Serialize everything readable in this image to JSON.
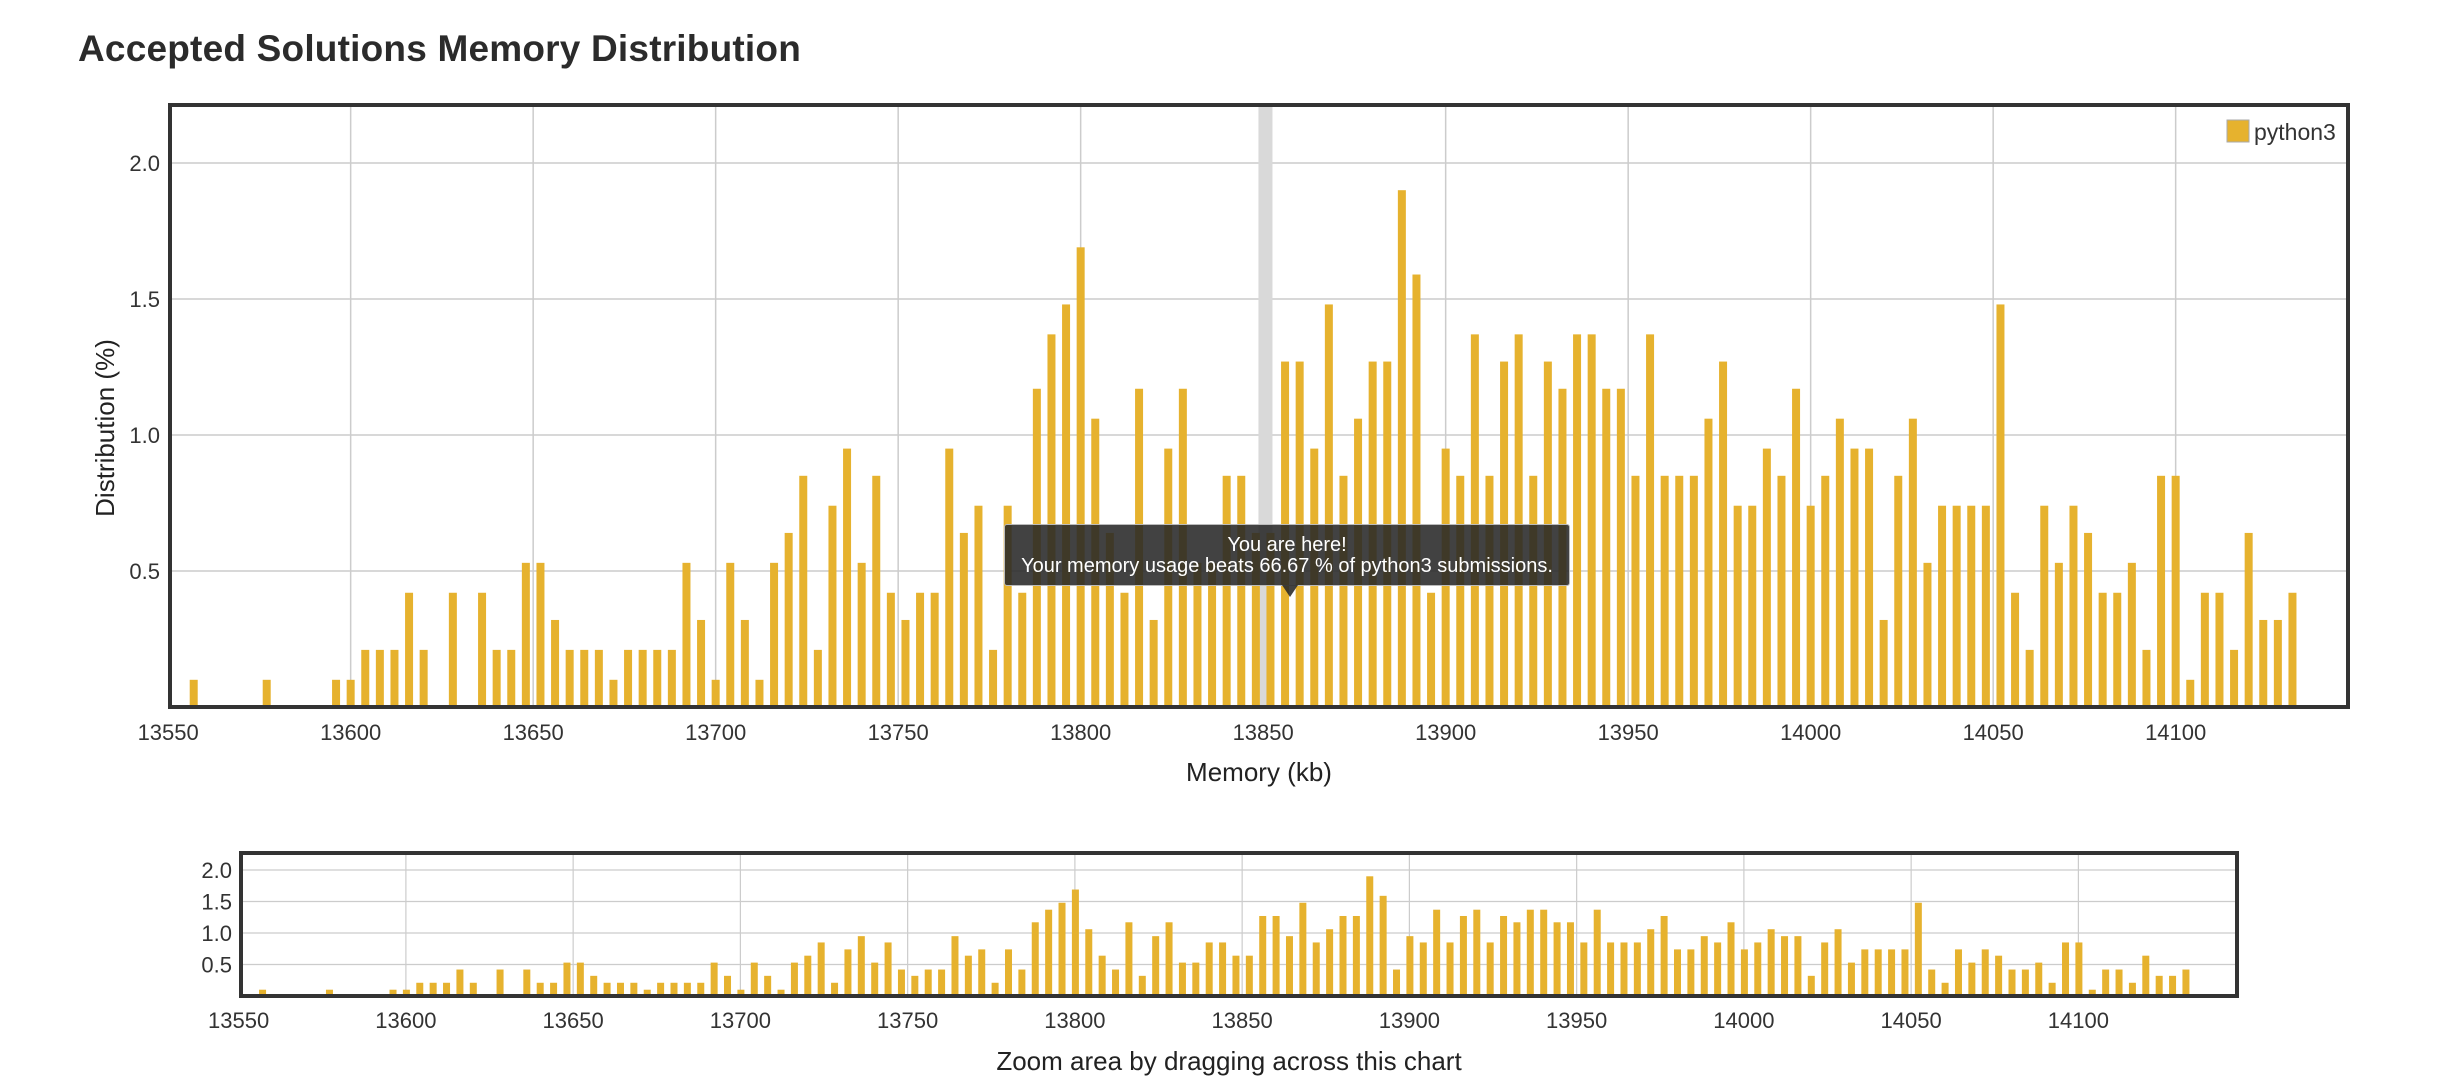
{
  "title": "Accepted Solutions Memory Distribution",
  "tooltip": {
    "line1": "You are here!",
    "line2": "Your memory usage beats 66.67 % of python3 submissions."
  },
  "zoom_hint": "Zoom area by dragging across this chart",
  "colors": {
    "bar": "#e6b22e",
    "highlight_band": "#d9d9d9",
    "frame": "#333333",
    "grid": "#cccccc"
  },
  "chart_data": {
    "type": "bar",
    "title": "Accepted Solutions Memory Distribution",
    "xlabel": "Memory (kb)",
    "ylabel": "Distribution (%)",
    "legend": [
      "python3"
    ],
    "legend_position": "top-right",
    "grid": true,
    "xlim": [
      13555,
      14135
    ],
    "ylim": [
      0,
      2.2
    ],
    "x_ticks": [
      13550,
      13600,
      13650,
      13700,
      13750,
      13800,
      13850,
      13900,
      13950,
      14000,
      14050,
      14100
    ],
    "y_ticks": [
      0.5,
      1.0,
      1.5,
      2.0
    ],
    "y_tick_labels": [
      "0.5",
      "1.0",
      "1.5",
      "2.0"
    ],
    "overview_y_ticks": [
      0.5,
      1.0,
      1.5,
      2.0
    ],
    "overview_y_tick_labels": [
      "0.5",
      "1.0",
      "1.5",
      "2.0"
    ],
    "highlight_x": 13852,
    "series": [
      {
        "name": "python3",
        "x": [
          13557,
          13577,
          13596,
          13600,
          13604,
          13608,
          13612,
          13616,
          13620,
          13628,
          13636,
          13640,
          13644,
          13648,
          13652,
          13656,
          13660,
          13664,
          13668,
          13672,
          13676,
          13680,
          13684,
          13688,
          13692,
          13696,
          13700,
          13704,
          13708,
          13712,
          13716,
          13720,
          13724,
          13728,
          13732,
          13736,
          13740,
          13744,
          13748,
          13752,
          13756,
          13760,
          13764,
          13768,
          13772,
          13776,
          13780,
          13784,
          13788,
          13792,
          13796,
          13800,
          13804,
          13808,
          13812,
          13816,
          13820,
          13824,
          13828,
          13832,
          13836,
          13840,
          13844,
          13848,
          13852,
          13856,
          13860,
          13864,
          13868,
          13872,
          13876,
          13880,
          13884,
          13888,
          13892,
          13896,
          13900,
          13904,
          13908,
          13912,
          13916,
          13920,
          13924,
          13928,
          13932,
          13936,
          13940,
          13944,
          13948,
          13952,
          13956,
          13960,
          13964,
          13968,
          13972,
          13976,
          13980,
          13984,
          13988,
          13992,
          13996,
          14000,
          14004,
          14008,
          14012,
          14016,
          14020,
          14024,
          14028,
          14032,
          14036,
          14040,
          14044,
          14048,
          14052,
          14056,
          14060,
          14064,
          14068,
          14072,
          14076,
          14080,
          14084,
          14088,
          14092,
          14096,
          14100,
          14104,
          14108,
          14112,
          14116,
          14120,
          14124,
          14128,
          14132
        ],
        "values": [
          0.1,
          0.1,
          0.1,
          0.1,
          0.21,
          0.21,
          0.21,
          0.42,
          0.21,
          0.42,
          0.42,
          0.21,
          0.21,
          0.53,
          0.53,
          0.32,
          0.21,
          0.21,
          0.21,
          0.1,
          0.21,
          0.21,
          0.21,
          0.21,
          0.53,
          0.32,
          0.1,
          0.53,
          0.32,
          0.1,
          0.53,
          0.64,
          0.85,
          0.21,
          0.74,
          0.95,
          0.53,
          0.85,
          0.42,
          0.32,
          0.42,
          0.42,
          0.95,
          0.64,
          0.74,
          0.21,
          0.74,
          0.42,
          1.17,
          1.37,
          1.48,
          1.69,
          1.06,
          0.64,
          0.42,
          1.17,
          0.32,
          0.95,
          1.17,
          0.53,
          0.53,
          0.85,
          0.85,
          0.64,
          0.64,
          1.27,
          1.27,
          0.95,
          1.48,
          0.85,
          1.06,
          1.27,
          1.27,
          1.9,
          1.59,
          0.42,
          0.95,
          0.85,
          1.37,
          0.85,
          1.27,
          1.37,
          0.85,
          1.27,
          1.17,
          1.37,
          1.37,
          1.17,
          1.17,
          0.85,
          1.37,
          0.85,
          0.85,
          0.85,
          1.06,
          1.27,
          0.74,
          0.74,
          0.95,
          0.85,
          1.17,
          0.74,
          0.85,
          1.06,
          0.95,
          0.95,
          0.32,
          0.85,
          1.06,
          0.53,
          0.74,
          0.74,
          0.74,
          0.74,
          1.48,
          0.42,
          0.21,
          0.74,
          0.53,
          0.74,
          0.64,
          0.42,
          0.42,
          0.53,
          0.21,
          0.85,
          0.85,
          0.1,
          0.42,
          0.42,
          0.21,
          0.64,
          0.32,
          0.32,
          0.42
        ]
      }
    ]
  }
}
